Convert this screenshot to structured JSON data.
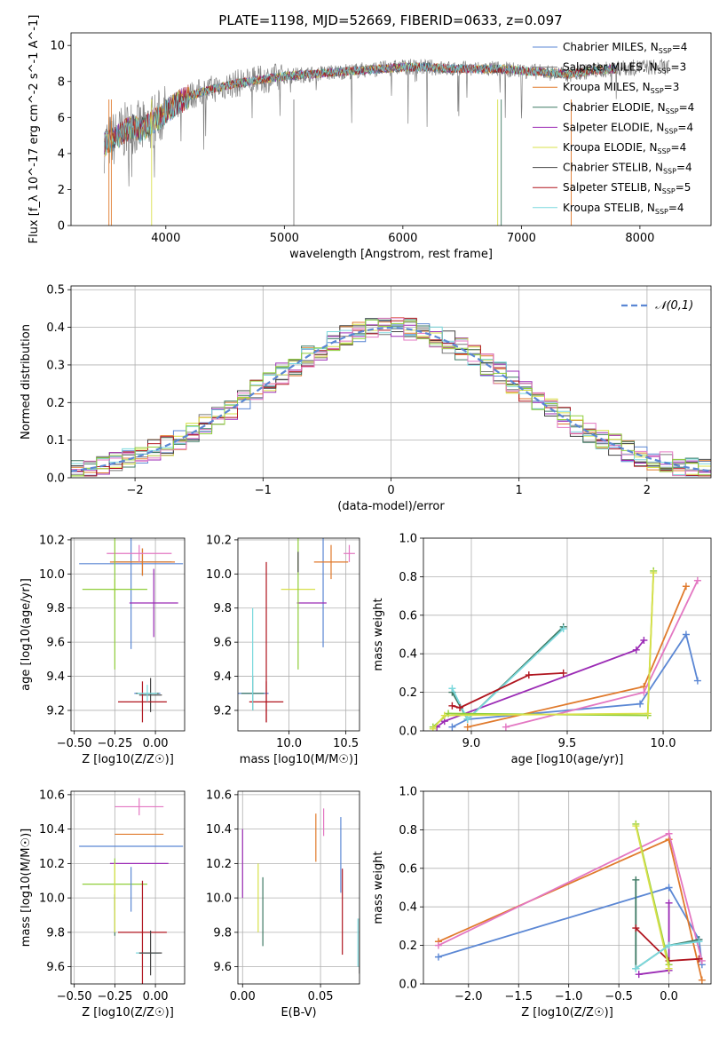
{
  "chart_data": [
    {
      "type": "line",
      "title": "PLATE=1198, MJD=52669, FIBERID=0633, z=0.097",
      "xlabel": "wavelength [Angstrom, rest frame]",
      "ylabel": "Flux [f_λ 10^-17 erg cm^-2 s^-1 A^-1]",
      "xlim": [
        3200,
        8600
      ],
      "ylim": [
        0,
        10.7
      ],
      "xticks": [
        4000,
        5000,
        6000,
        7000,
        8000
      ],
      "yticks": [
        0,
        2,
        4,
        6,
        8,
        10
      ],
      "legend_position": "top-right",
      "series": [
        {
          "name": "Chabrier MILES, N_SSP=4",
          "color": "#5b87d4"
        },
        {
          "name": "Salpeter MILES, N_SSP=3",
          "color": "#7a7a7a"
        },
        {
          "name": "Kroupa MILES, N_SSP=3",
          "color": "#e07a2c"
        },
        {
          "name": "Chabrier ELODIE, N_SSP=4",
          "color": "#3e7a64"
        },
        {
          "name": "Salpeter ELODIE, N_SSP=4",
          "color": "#9b2bb5"
        },
        {
          "name": "Kroupa ELODIE, N_SSP=4",
          "color": "#d8e04a"
        },
        {
          "name": "Chabrier STELIB, N_SSP=4",
          "color": "#444444"
        },
        {
          "name": "Salpeter STELIB, N_SSP=5",
          "color": "#b0151f"
        },
        {
          "name": "Kroupa STELIB, N_SSP=4",
          "color": "#7ad8dd"
        }
      ],
      "data_series": {
        "name": "data",
        "color": "#808080",
        "x": [
          3480,
          3560,
          3640,
          3720,
          3800,
          3900,
          4000,
          4100,
          4200,
          4300,
          4400,
          4600,
          4800,
          5000,
          5200,
          5400,
          5600,
          5800,
          6000,
          6200,
          6400,
          6600,
          6800,
          7000,
          7200,
          7400,
          7600,
          7800,
          8000,
          8200
        ],
        "values": [
          4.5,
          4.8,
          5.2,
          5.5,
          5.3,
          5.8,
          6.3,
          6.8,
          7.2,
          7.4,
          7.6,
          7.9,
          8.1,
          8.3,
          8.4,
          8.5,
          8.6,
          8.7,
          8.8,
          8.8,
          8.7,
          8.7,
          8.7,
          8.6,
          8.5,
          8.4,
          8.6,
          8.7,
          8.8,
          8.8
        ]
      }
    },
    {
      "type": "line",
      "xlabel": "(data-model)/error",
      "ylabel": "Normed distribution",
      "xlim": [
        -2.5,
        2.5
      ],
      "ylim": [
        0,
        0.51
      ],
      "xticks": [
        -2,
        -1,
        0,
        1,
        2
      ],
      "yticks": [
        0.0,
        0.1,
        0.2,
        0.3,
        0.4,
        0.5
      ],
      "grid": true,
      "legend": "𝒩(0,1)",
      "legend_position": "top-right",
      "reference_curve": "gaussian mean 0 sigma 1",
      "bin_edges": [
        -2.5,
        -2.4,
        -2.3,
        -2.2,
        -2.1,
        -2.0,
        -1.9,
        -1.8,
        -1.7,
        -1.6,
        -1.5,
        -1.4,
        -1.3,
        -1.2,
        -1.1,
        -1.0,
        -0.9,
        -0.8,
        -0.7,
        -0.6,
        -0.5,
        -0.4,
        -0.3,
        -0.2,
        -0.1,
        0.0,
        0.1,
        0.2,
        0.3,
        0.4,
        0.5,
        0.6,
        0.7,
        0.8,
        0.9,
        1.0,
        1.1,
        1.2,
        1.3,
        1.4,
        1.5,
        1.6,
        1.7,
        1.8,
        1.9,
        2.0,
        2.1,
        2.2,
        2.3,
        2.4,
        2.5
      ]
    },
    {
      "type": "scatter",
      "xlabel": "Z [log10(Z/Z☉)]",
      "ylabel": "age [log10(age/yr)]",
      "xlim": [
        -0.52,
        0.18
      ],
      "ylim": [
        9.08,
        10.21
      ],
      "xticks": [
        -0.5,
        -0.25,
        0.0
      ],
      "xtick_labels": [
        "−0.50",
        "−0.25",
        "0.00"
      ],
      "yticks": [
        9.2,
        9.4,
        9.6,
        9.8,
        10.0,
        10.2
      ],
      "grid": true,
      "errorbars": [
        {
          "c": "#5b87d4",
          "x": -0.05,
          "y": 9.3,
          "xerr": 0.08,
          "yerr": 0.0
        },
        {
          "c": "#5b87d4",
          "x": -0.15,
          "y": 10.06,
          "xerr": 0.32,
          "yerr": 0.5
        },
        {
          "c": "#7a7a7a",
          "x": -0.08,
          "y": 10.07,
          "xerr": 0.18,
          "yerr": 0.08
        },
        {
          "c": "#e07a2c",
          "x": -0.08,
          "y": 10.07,
          "xerr": 0.2,
          "yerr": 0.08
        },
        {
          "c": "#3e7a64",
          "x": -0.05,
          "y": 9.3,
          "xerr": 0.07,
          "yerr": 0.0
        },
        {
          "c": "#9b2bb5",
          "x": -0.01,
          "y": 9.83,
          "xerr": 0.15,
          "yerr": 0.2
        },
        {
          "c": "#d8e04a",
          "x": -0.25,
          "y": 9.91,
          "xerr": 0.02,
          "yerr": 0.06
        },
        {
          "c": "#444444",
          "x": -0.03,
          "y": 9.29,
          "xerr": 0.07,
          "yerr": 0.1
        },
        {
          "c": "#b0151f",
          "x": -0.08,
          "y": 9.25,
          "xerr": 0.15,
          "yerr": 0.12
        },
        {
          "c": "#7ad8dd",
          "x": -0.05,
          "y": 9.3,
          "xerr": 0.06,
          "yerr": 0.05
        },
        {
          "c": "#e377c2",
          "x": -0.1,
          "y": 10.12,
          "xerr": 0.2,
          "yerr": 0.05
        },
        {
          "c": "#8fce3a",
          "x": -0.25,
          "y": 9.91,
          "xerr": 0.2,
          "yerr": 0.47
        }
      ]
    },
    {
      "type": "scatter",
      "xlabel": "mass [log10(M/M☉)]",
      "xlim": [
        9.55,
        10.62
      ],
      "ylim": [
        9.08,
        10.21
      ],
      "xticks": [
        10.0,
        10.5
      ],
      "xtick_labels": [
        "10.0",
        "10.5"
      ],
      "yticks": [
        9.2,
        9.4,
        9.6,
        9.8,
        10.0,
        10.2
      ],
      "grid": true,
      "errorbars": [
        {
          "c": "#5b87d4",
          "x": 10.3,
          "y": 10.07,
          "xerr": 0.0,
          "yerr": 0.5
        },
        {
          "c": "#5b87d4",
          "x": 9.68,
          "y": 9.3,
          "xerr": 0.14,
          "yerr": 0.0
        },
        {
          "c": "#e07a2c",
          "x": 10.37,
          "y": 10.07,
          "xerr": 0.15,
          "yerr": 0.1
        },
        {
          "c": "#9b2bb5",
          "x": 10.2,
          "y": 9.83,
          "xerr": 0.13,
          "yerr": 0.0
        },
        {
          "c": "#d8e04a",
          "x": 10.08,
          "y": 9.91,
          "xerr": 0.15,
          "yerr": 0.0
        },
        {
          "c": "#3e7a64",
          "x": 9.68,
          "y": 9.3,
          "xerr": 0.1,
          "yerr": 0.1
        },
        {
          "c": "#b0151f",
          "x": 9.8,
          "y": 9.25,
          "xerr": 0.15,
          "yerr": 0.12
        },
        {
          "c": "#7ad8dd",
          "x": 9.68,
          "y": 9.5,
          "xerr": 0.0,
          "yerr": 0.3
        },
        {
          "c": "#e377c2",
          "x": 10.53,
          "y": 10.12,
          "xerr": 0.05,
          "yerr": 0.05
        },
        {
          "c": "#8fce3a",
          "x": 10.08,
          "y": 9.91,
          "xerr": 0.0,
          "yerr": 0.47
        },
        {
          "c": "#444444",
          "x": 10.08,
          "y": 10.07,
          "xerr": 0.0,
          "yerr": 0.06
        },
        {
          "c": "#b0151f",
          "x": 9.8,
          "y": 9.6,
          "xerr": 0.0,
          "yerr": 0.47
        }
      ]
    },
    {
      "type": "line",
      "xlabel": "age [log10(age/yr)]",
      "ylabel": "mass weight",
      "xlim": [
        8.75,
        10.25
      ],
      "ylim": [
        0,
        1.0
      ],
      "xticks": [
        9.0,
        9.5,
        10.0
      ],
      "yticks": [
        0.0,
        0.2,
        0.4,
        0.6,
        0.8,
        1.0
      ],
      "grid": true,
      "series": [
        {
          "color": "#5b87d4",
          "x": [
            8.9,
            8.98,
            9.88,
            10.12,
            10.18
          ],
          "values": [
            0.02,
            0.06,
            0.14,
            0.5,
            0.26
          ]
        },
        {
          "color": "#e07a2c",
          "x": [
            8.98,
            9.9,
            10.12
          ],
          "values": [
            0.02,
            0.23,
            0.75
          ]
        },
        {
          "color": "#e377c2",
          "x": [
            9.18,
            9.9,
            10.18
          ],
          "values": [
            0.02,
            0.2,
            0.78
          ]
        },
        {
          "color": "#9b2bb5",
          "x": [
            8.82,
            8.86,
            9.86,
            9.9
          ],
          "values": [
            0.02,
            0.05,
            0.42,
            0.47
          ]
        },
        {
          "color": "#3e7a64",
          "x": [
            8.9,
            8.98,
            9.48
          ],
          "values": [
            0.2,
            0.06,
            0.54
          ]
        },
        {
          "color": "#7ad8dd",
          "x": [
            8.9,
            8.98,
            9.48
          ],
          "values": [
            0.22,
            0.06,
            0.53
          ]
        },
        {
          "color": "#b0151f",
          "x": [
            8.9,
            8.94,
            9.3,
            9.48
          ],
          "values": [
            0.13,
            0.12,
            0.29,
            0.3
          ]
        },
        {
          "color": "#8fce3a",
          "x": [
            8.8,
            8.88,
            9.92,
            9.95
          ],
          "values": [
            0.02,
            0.09,
            0.08,
            0.83
          ]
        },
        {
          "color": "#d8e04a",
          "x": [
            8.8,
            8.86,
            9.92,
            9.95
          ],
          "values": [
            0.01,
            0.08,
            0.09,
            0.82
          ]
        }
      ]
    },
    {
      "type": "scatter",
      "xlabel": "Z [log10(Z/Z☉)]",
      "ylabel": "mass [log10(M/M☉)]",
      "xlim": [
        -0.52,
        0.18
      ],
      "ylim": [
        9.5,
        10.62
      ],
      "xticks": [
        -0.5,
        -0.25,
        0.0
      ],
      "xtick_labels": [
        "−0.50",
        "−0.25",
        "0.00"
      ],
      "yticks": [
        9.6,
        9.8,
        10.0,
        10.2,
        10.4,
        10.6
      ],
      "grid": true,
      "errorbars": [
        {
          "c": "#e377c2",
          "x": -0.1,
          "y": 10.53,
          "xerr": 0.15,
          "yerr": 0.05
        },
        {
          "c": "#e07a2c",
          "x": -0.1,
          "y": 10.37,
          "xerr": 0.15,
          "yerr": 0.0
        },
        {
          "c": "#5b87d4",
          "x": -0.15,
          "y": 10.3,
          "xerr": 0.32,
          "yerr": 0.0
        },
        {
          "c": "#9b2bb5",
          "x": -0.1,
          "y": 10.2,
          "xerr": 0.18,
          "yerr": 0.0
        },
        {
          "c": "#8fce3a",
          "x": -0.25,
          "y": 10.08,
          "xerr": 0.2,
          "yerr": 0.15
        },
        {
          "c": "#5b87d4",
          "x": -0.15,
          "y": 10.05,
          "xerr": 0.0,
          "yerr": 0.13
        },
        {
          "c": "#b0151f",
          "x": -0.08,
          "y": 9.8,
          "xerr": 0.15,
          "yerr": 0.3
        },
        {
          "c": "#7ad8dd",
          "x": -0.05,
          "y": 9.68,
          "xerr": 0.07,
          "yerr": 0.0
        },
        {
          "c": "#444444",
          "x": -0.03,
          "y": 9.68,
          "xerr": 0.07,
          "yerr": 0.13
        },
        {
          "c": "#3e7a64",
          "x": -0.25,
          "y": 9.9,
          "xerr": 0.0,
          "yerr": 0.12
        },
        {
          "c": "#d8e04a",
          "x": -0.25,
          "y": 10.0,
          "xerr": 0.0,
          "yerr": 0.2
        }
      ]
    },
    {
      "type": "scatter",
      "xlabel": "E(B-V)",
      "xlim": [
        -0.003,
        0.075
      ],
      "ylim": [
        9.5,
        10.62
      ],
      "xticks": [
        0.0,
        0.05
      ],
      "xtick_labels": [
        "0.00",
        "0.05"
      ],
      "yticks": [
        9.6,
        9.8,
        10.0,
        10.2,
        10.4,
        10.6
      ],
      "grid": true,
      "errorbars": [
        {
          "c": "#9b2bb5",
          "x": 0.0,
          "y": 10.2,
          "xerr": 0.0,
          "yerr": 0.2
        },
        {
          "c": "#d8e04a",
          "x": 0.01,
          "y": 10.0,
          "xerr": 0.0,
          "yerr": 0.2
        },
        {
          "c": "#3e7a64",
          "x": 0.013,
          "y": 9.92,
          "xerr": 0.0,
          "yerr": 0.2
        },
        {
          "c": "#e07a2c",
          "x": 0.047,
          "y": 10.35,
          "xerr": 0.0,
          "yerr": 0.14
        },
        {
          "c": "#e377c2",
          "x": 0.052,
          "y": 10.44,
          "xerr": 0.0,
          "yerr": 0.08
        },
        {
          "c": "#5b87d4",
          "x": 0.063,
          "y": 10.25,
          "xerr": 0.0,
          "yerr": 0.22
        },
        {
          "c": "#b0151f",
          "x": 0.064,
          "y": 9.92,
          "xerr": 0.0,
          "yerr": 0.25
        },
        {
          "c": "#444444",
          "x": 0.075,
          "y": 9.72,
          "xerr": 0.0,
          "yerr": 0.16
        },
        {
          "c": "#7ad8dd",
          "x": 0.074,
          "y": 9.74,
          "xerr": 0.0,
          "yerr": 0.14
        }
      ]
    },
    {
      "type": "line",
      "xlabel": "Z [log10(Z/Z☉)]",
      "ylabel": "mass weight",
      "xlim": [
        -2.45,
        0.42
      ],
      "ylim": [
        0,
        1.0
      ],
      "xticks": [
        -2.0,
        -1.5,
        -1.0,
        -0.5,
        0.0
      ],
      "xtick_labels": [
        "−2.0",
        "−1.5",
        "−1.0",
        "−0.5",
        "0.0"
      ],
      "yticks": [
        0.0,
        0.2,
        0.4,
        0.6,
        0.8,
        1.0
      ],
      "grid": true,
      "series": [
        {
          "color": "#5b87d4",
          "x": [
            -2.3,
            0.0,
            0.3,
            0.33
          ],
          "values": [
            0.14,
            0.5,
            0.23,
            0.1
          ]
        },
        {
          "color": "#e07a2c",
          "x": [
            -2.3,
            0.0,
            0.33
          ],
          "values": [
            0.22,
            0.75,
            0.02
          ]
        },
        {
          "color": "#e377c2",
          "x": [
            -2.3,
            0.0,
            0.33
          ],
          "values": [
            0.2,
            0.78,
            0.12
          ]
        },
        {
          "color": "#9b2bb5",
          "x": [
            -0.3,
            0.0,
            0.0
          ],
          "values": [
            0.05,
            0.07,
            0.42
          ]
        },
        {
          "color": "#3e7a64",
          "x": [
            -0.33,
            -0.33,
            0.0,
            0.3
          ],
          "values": [
            0.54,
            0.08,
            0.2,
            0.23
          ]
        },
        {
          "color": "#b0151f",
          "x": [
            -0.33,
            0.0,
            0.3
          ],
          "values": [
            0.29,
            0.12,
            0.13
          ]
        },
        {
          "color": "#8fce3a",
          "x": [
            -0.33,
            0.0
          ],
          "values": [
            0.83,
            0.1
          ]
        },
        {
          "color": "#d8e04a",
          "x": [
            -0.33,
            0.0
          ],
          "values": [
            0.82,
            0.08
          ]
        },
        {
          "color": "#7ad8dd",
          "x": [
            -0.33,
            0.0,
            0.3
          ],
          "values": [
            0.08,
            0.2,
            0.22
          ]
        }
      ]
    }
  ]
}
